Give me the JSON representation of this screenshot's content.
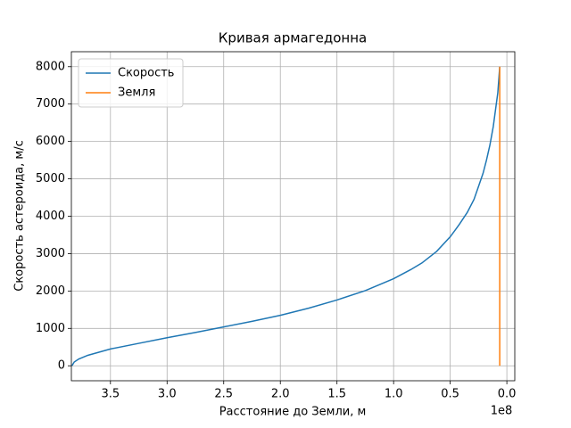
{
  "chart_data": {
    "type": "line",
    "title": "Кривая армагедонна",
    "x_label": "Расстояние до Земли, м",
    "y_label": "Скорость астероида, м/с",
    "x_offset_label": "1e8",
    "xlim": [
      384500000,
      -7000000
    ],
    "ylim": [
      -400,
      8400
    ],
    "xticks": [
      {
        "value": 350000000,
        "label": "3.5"
      },
      {
        "value": 300000000,
        "label": "3.0"
      },
      {
        "value": 250000000,
        "label": "2.5"
      },
      {
        "value": 200000000,
        "label": "2.0"
      },
      {
        "value": 150000000,
        "label": "1.5"
      },
      {
        "value": 100000000,
        "label": "1.0"
      },
      {
        "value": 50000000,
        "label": "0.5"
      },
      {
        "value": 0,
        "label": "0.0"
      }
    ],
    "yticks": [
      0,
      1000,
      2000,
      3000,
      4000,
      5000,
      6000,
      7000,
      8000
    ],
    "grid": true,
    "legend": "upper left",
    "series": [
      {
        "name": "Скорость",
        "color": "#1f77b4",
        "x": [
          384000000,
          382000000,
          378000000,
          370000000,
          350000000,
          325000000,
          300000000,
          275000000,
          250000000,
          225000000,
          200000000,
          175000000,
          150000000,
          125000000,
          100000000,
          85000000,
          75000000,
          62000000,
          50000000,
          42000000,
          35000000,
          29000000,
          25000000,
          21000000,
          18000000,
          15000000,
          12000000,
          10000000,
          8000000,
          6300000
        ],
        "values": [
          0,
          100,
          180,
          280,
          450,
          600,
          750,
          890,
          1040,
          1190,
          1350,
          1540,
          1760,
          2010,
          2330,
          2570,
          2750,
          3060,
          3450,
          3780,
          4100,
          4450,
          4800,
          5150,
          5500,
          5900,
          6400,
          6850,
          7300,
          8000
        ]
      },
      {
        "name": "Земля",
        "color": "#ff7f0e",
        "x": [
          6300000,
          6300000
        ],
        "values": [
          0,
          8000
        ]
      }
    ]
  }
}
